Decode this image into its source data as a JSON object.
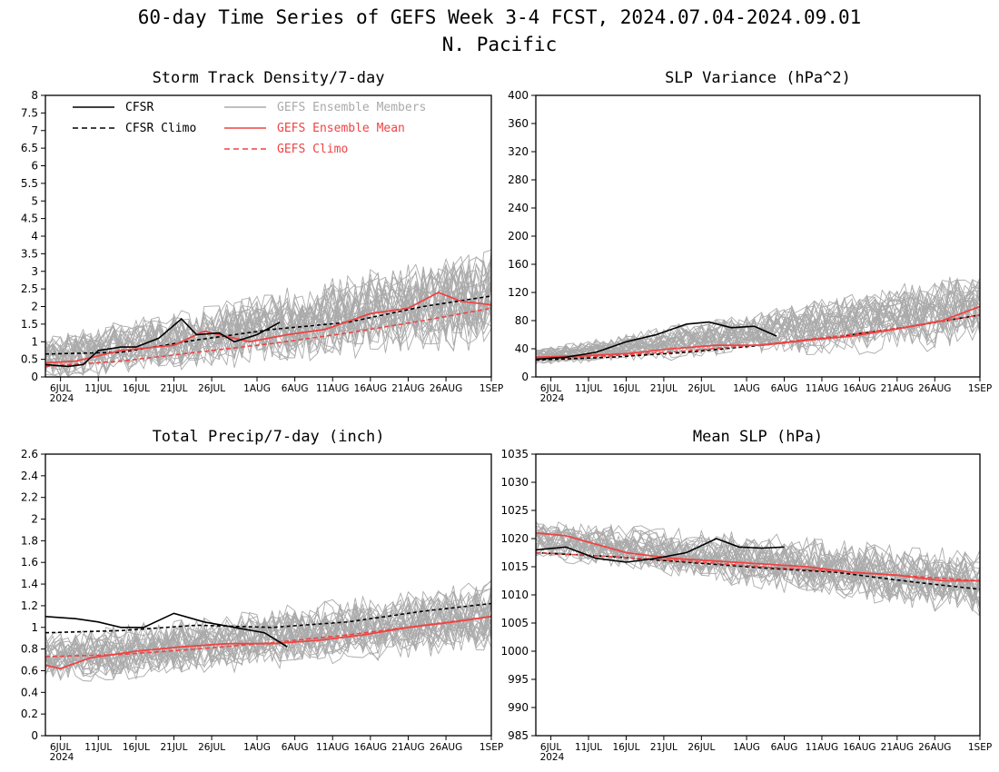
{
  "figure": {
    "title_line1": "60-day Time Series of GEFS Week 3-4 FCST, 2024.07.04-2024.09.01",
    "title_line2": "N. Pacific"
  },
  "colors": {
    "cfsr": "#000000",
    "members": "#aaaaaa",
    "mean": "#ee4444",
    "gefs_climo": "#ee4444",
    "legend_members_text": "#aaaaaa"
  },
  "legend": {
    "placement": "top-left of first panel",
    "items": [
      {
        "label": "CFSR",
        "style": "solid",
        "color": "#000000"
      },
      {
        "label": "CFSR Climo",
        "style": "dashed",
        "color": "#000000"
      },
      {
        "label": "GEFS Ensemble Members",
        "style": "solid",
        "color": "#aaaaaa"
      },
      {
        "label": "GEFS Ensemble Mean",
        "style": "solid",
        "color": "#ee4444"
      },
      {
        "label": "GEFS Climo",
        "style": "dashed",
        "color": "#ee4444"
      }
    ]
  },
  "x_axis": {
    "start": "2024-07-04",
    "end": "2024-09-01",
    "ticks": [
      {
        "date": "2024-07-06",
        "label": "6JUL",
        "sub": "2024"
      },
      {
        "date": "2024-07-11",
        "label": "11JUL"
      },
      {
        "date": "2024-07-16",
        "label": "16JUL"
      },
      {
        "date": "2024-07-21",
        "label": "21JUL"
      },
      {
        "date": "2024-07-26",
        "label": "26JUL"
      },
      {
        "date": "2024-08-01",
        "label": "1AUG"
      },
      {
        "date": "2024-08-06",
        "label": "6AUG"
      },
      {
        "date": "2024-08-11",
        "label": "11AUG"
      },
      {
        "date": "2024-08-16",
        "label": "16AUG"
      },
      {
        "date": "2024-08-21",
        "label": "21AUG"
      },
      {
        "date": "2024-08-26",
        "label": "26AUG"
      },
      {
        "date": "2024-09-01",
        "label": "1SEP"
      }
    ]
  },
  "chart_data": [
    {
      "type": "line",
      "title": "Storm Track Density/7-day",
      "ylim": [
        0,
        8
      ],
      "yticks": [
        "0",
        "0.5",
        "1",
        "1.5",
        "2",
        "2.5",
        "3",
        "3.5",
        "4",
        "4.5",
        "5",
        "5.5",
        "6",
        "6.5",
        "7",
        "7.5",
        "8"
      ],
      "show_legend": true,
      "cfsr": {
        "x": [
          "2024-07-04",
          "2024-07-07",
          "2024-07-09",
          "2024-07-11",
          "2024-07-14",
          "2024-07-16",
          "2024-07-19",
          "2024-07-22",
          "2024-07-24",
          "2024-07-27",
          "2024-07-29",
          "2024-08-01",
          "2024-08-04"
        ],
        "y": [
          0.35,
          0.3,
          0.35,
          0.75,
          0.85,
          0.85,
          1.1,
          1.65,
          1.2,
          1.25,
          1.0,
          1.2,
          1.55
        ]
      },
      "cfsr_climo": {
        "x": [
          "2024-07-04",
          "2024-07-14",
          "2024-07-24",
          "2024-08-03",
          "2024-08-13",
          "2024-08-23",
          "2024-09-01"
        ],
        "y": [
          0.65,
          0.7,
          1.05,
          1.35,
          1.55,
          2.0,
          2.3
        ]
      },
      "gefs_mean": {
        "x": [
          "2024-07-04",
          "2024-07-08",
          "2024-07-14",
          "2024-07-21",
          "2024-07-25",
          "2024-07-31",
          "2024-08-05",
          "2024-08-10",
          "2024-08-16",
          "2024-08-21",
          "2024-08-25",
          "2024-08-28",
          "2024-09-01"
        ],
        "y": [
          0.4,
          0.45,
          0.75,
          0.9,
          1.3,
          1.0,
          1.2,
          1.35,
          1.8,
          1.95,
          2.4,
          2.15,
          2.05
        ]
      },
      "gefs_climo": {
        "x": [
          "2024-07-04",
          "2024-07-14",
          "2024-07-24",
          "2024-08-03",
          "2024-08-13",
          "2024-08-23",
          "2024-09-01"
        ],
        "y": [
          0.3,
          0.45,
          0.7,
          0.95,
          1.25,
          1.6,
          1.95
        ]
      },
      "members": {
        "count": 30,
        "center_start": 0.55,
        "center_end": 2.3,
        "spread_start": 0.5,
        "spread_end": 1.1,
        "floor": 0,
        "ceiling": 5.0
      }
    },
    {
      "type": "line",
      "title": "SLP Variance (hPa^2)",
      "ylim": [
        0,
        400
      ],
      "yticks": [
        "0",
        "40",
        "80",
        "120",
        "160",
        "200",
        "240",
        "280",
        "320",
        "360",
        "400"
      ],
      "show_legend": false,
      "cfsr": {
        "x": [
          "2024-07-04",
          "2024-07-08",
          "2024-07-12",
          "2024-07-16",
          "2024-07-20",
          "2024-07-24",
          "2024-07-27",
          "2024-07-30",
          "2024-08-02",
          "2024-08-05"
        ],
        "y": [
          25,
          28,
          35,
          50,
          60,
          75,
          78,
          70,
          72,
          58
        ]
      },
      "cfsr_climo": {
        "x": [
          "2024-07-04",
          "2024-07-14",
          "2024-07-24",
          "2024-08-03",
          "2024-08-13",
          "2024-08-23",
          "2024-09-01"
        ],
        "y": [
          24,
          28,
          35,
          45,
          57,
          72,
          88
        ]
      },
      "gefs_mean": {
        "x": [
          "2024-07-04",
          "2024-07-10",
          "2024-07-16",
          "2024-07-22",
          "2024-07-28",
          "2024-08-03",
          "2024-08-09",
          "2024-08-15",
          "2024-08-21",
          "2024-08-27",
          "2024-09-01"
        ],
        "y": [
          28,
          30,
          33,
          40,
          45,
          45,
          52,
          58,
          68,
          80,
          100
        ]
      },
      "gefs_climo": {
        "x": [
          "2024-07-04",
          "2024-07-14",
          "2024-07-24",
          "2024-08-03",
          "2024-08-13",
          "2024-08-23",
          "2024-09-01"
        ],
        "y": [
          26,
          30,
          37,
          46,
          58,
          72,
          88
        ]
      },
      "members": {
        "count": 30,
        "center_start": 28,
        "center_end": 95,
        "spread_start": 8,
        "spread_end": 40,
        "floor": 15,
        "ceiling": 185
      }
    },
    {
      "type": "line",
      "title": "Total Precip/7-day (inch)",
      "ylim": [
        0,
        2.6
      ],
      "yticks": [
        "0",
        "0.2",
        "0.4",
        "0.6",
        "0.8",
        "1",
        "1.2",
        "1.4",
        "1.6",
        "1.8",
        "2",
        "2.2",
        "2.4",
        "2.6"
      ],
      "show_legend": false,
      "cfsr": {
        "x": [
          "2024-07-04",
          "2024-07-08",
          "2024-07-11",
          "2024-07-14",
          "2024-07-17",
          "2024-07-21",
          "2024-07-25",
          "2024-07-29",
          "2024-08-02",
          "2024-08-05"
        ],
        "y": [
          1.1,
          1.08,
          1.05,
          1.0,
          1.0,
          1.13,
          1.05,
          1.0,
          0.95,
          0.82
        ]
      },
      "cfsr_climo": {
        "x": [
          "2024-07-04",
          "2024-07-14",
          "2024-07-24",
          "2024-08-03",
          "2024-08-13",
          "2024-08-23",
          "2024-09-01"
        ],
        "y": [
          0.95,
          0.97,
          1.02,
          1.0,
          1.05,
          1.15,
          1.22
        ]
      },
      "gefs_mean": {
        "x": [
          "2024-07-04",
          "2024-07-06",
          "2024-07-10",
          "2024-07-16",
          "2024-07-22",
          "2024-07-28",
          "2024-08-03",
          "2024-08-09",
          "2024-08-15",
          "2024-08-21",
          "2024-08-27",
          "2024-09-01"
        ],
        "y": [
          0.65,
          0.62,
          0.72,
          0.78,
          0.82,
          0.85,
          0.85,
          0.88,
          0.93,
          1.0,
          1.05,
          1.1
        ]
      },
      "gefs_climo": {
        "x": [
          "2024-07-04",
          "2024-07-14",
          "2024-07-24",
          "2024-08-03",
          "2024-08-13",
          "2024-08-23",
          "2024-09-01"
        ],
        "y": [
          0.73,
          0.75,
          0.8,
          0.86,
          0.93,
          1.02,
          1.1
        ]
      },
      "members": {
        "count": 30,
        "center_start": 0.7,
        "center_end": 1.1,
        "spread_start": 0.18,
        "spread_end": 0.25,
        "floor": 0.25,
        "ceiling": 1.75
      }
    },
    {
      "type": "line",
      "title": "Mean SLP (hPa)",
      "ylim": [
        985,
        1035
      ],
      "yticks": [
        "985",
        "990",
        "995",
        "1000",
        "1005",
        "1010",
        "1015",
        "1020",
        "1025",
        "1030",
        "1035"
      ],
      "show_legend": false,
      "cfsr": {
        "x": [
          "2024-07-04",
          "2024-07-08",
          "2024-07-12",
          "2024-07-16",
          "2024-07-20",
          "2024-07-24",
          "2024-07-28",
          "2024-07-31",
          "2024-08-03",
          "2024-08-06"
        ],
        "y": [
          1018,
          1018.5,
          1016.5,
          1015.8,
          1016.5,
          1017.5,
          1020,
          1018.5,
          1018.3,
          1018.5
        ]
      },
      "cfsr_climo": {
        "x": [
          "2024-07-04",
          "2024-07-14",
          "2024-07-24",
          "2024-08-03",
          "2024-08-13",
          "2024-08-23",
          "2024-09-01"
        ],
        "y": [
          1017.5,
          1016.8,
          1015.8,
          1014.8,
          1014,
          1012.3,
          1011
        ]
      },
      "gefs_mean": {
        "x": [
          "2024-07-04",
          "2024-07-08",
          "2024-07-12",
          "2024-07-16",
          "2024-07-22",
          "2024-07-28",
          "2024-08-03",
          "2024-08-09",
          "2024-08-15",
          "2024-08-21",
          "2024-08-27",
          "2024-09-01"
        ],
        "y": [
          1021,
          1020.5,
          1019,
          1017.5,
          1016.5,
          1016,
          1015.5,
          1015,
          1014,
          1013.5,
          1012.5,
          1012.5
        ]
      },
      "gefs_climo": {
        "x": [
          "2024-07-04",
          "2024-07-14",
          "2024-07-24",
          "2024-08-03",
          "2024-08-13",
          "2024-08-23",
          "2024-09-01"
        ],
        "y": [
          1017.5,
          1016.8,
          1016,
          1015,
          1014.2,
          1013.3,
          1012.5
        ]
      },
      "members": {
        "count": 30,
        "center_start": 1020,
        "center_end": 1012,
        "spread_start": 2.5,
        "spread_end": 4.5,
        "floor": 1001,
        "ceiling": 1028
      }
    }
  ]
}
